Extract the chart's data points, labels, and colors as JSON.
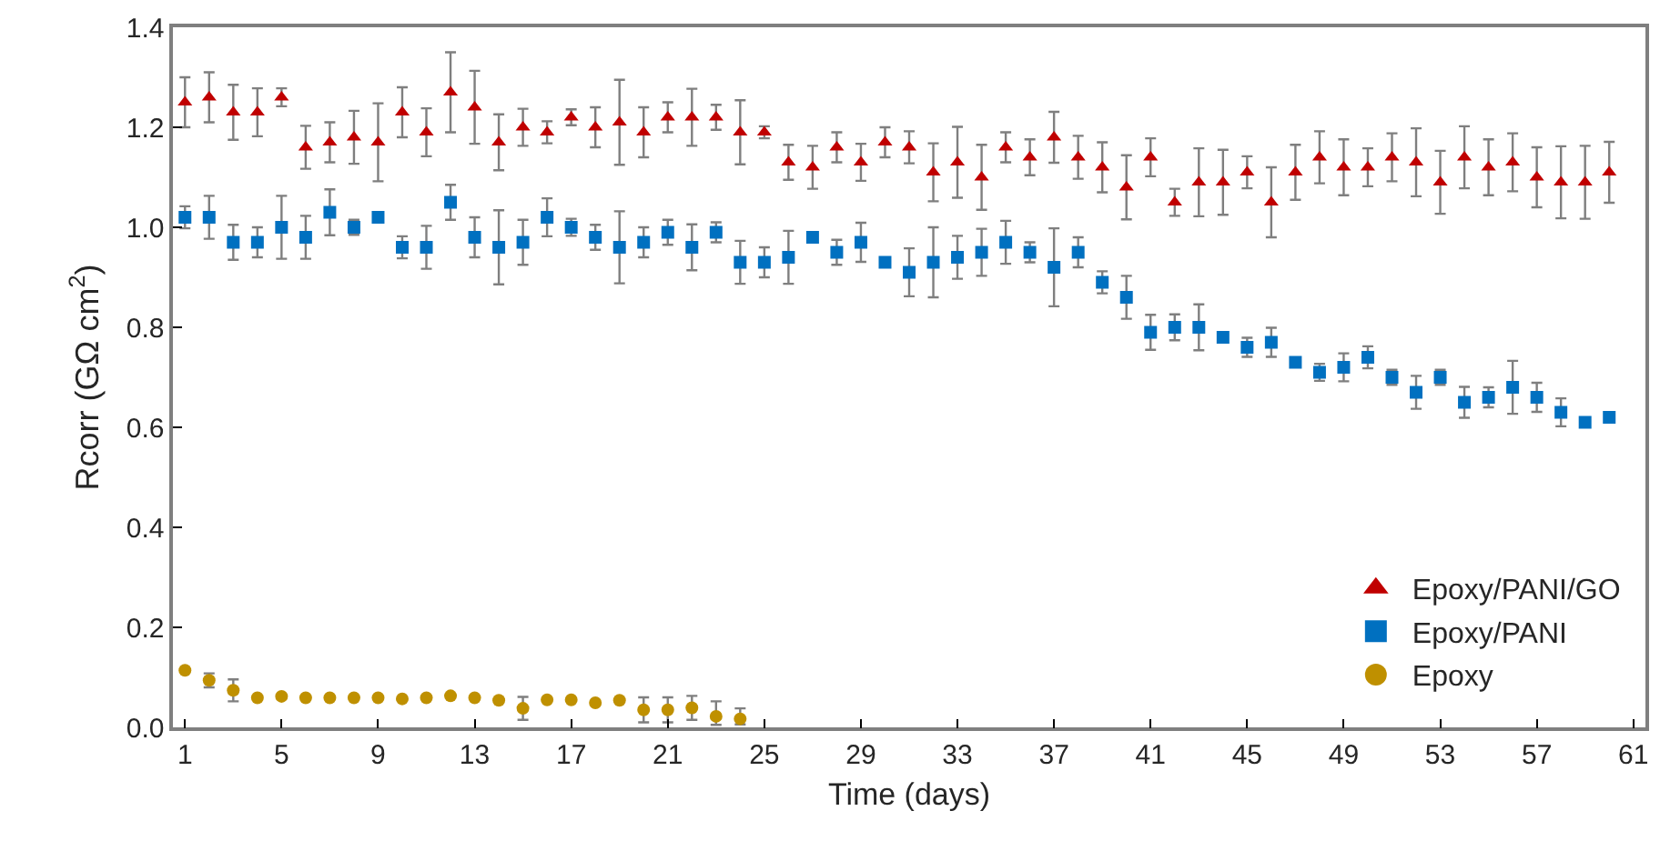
{
  "chart_data": {
    "type": "scatter",
    "xlabel": "Time (days)",
    "ylabel": "Rcorr (GΩ cm$^{2}$)",
    "x": [
      1,
      2,
      3,
      4,
      5,
      6,
      7,
      8,
      9,
      10,
      11,
      12,
      13,
      14,
      15,
      16,
      17,
      18,
      19,
      20,
      21,
      22,
      23,
      24,
      25,
      26,
      27,
      28,
      29,
      30,
      31,
      32,
      33,
      34,
      35,
      36,
      37,
      38,
      39,
      40,
      41,
      42,
      43,
      44,
      45,
      46,
      47,
      48,
      49,
      50,
      51,
      52,
      53,
      54,
      55,
      56,
      57,
      58,
      59,
      60
    ],
    "xlim": [
      0.5,
      61.5
    ],
    "xticks": [
      1,
      5,
      9,
      13,
      17,
      21,
      25,
      29,
      33,
      37,
      41,
      45,
      49,
      53,
      57,
      61
    ],
    "ylim": [
      0,
      1.4
    ],
    "yticks": [
      {
        "value": 0,
        "label": "0.0"
      },
      0.2,
      0.4,
      0.6,
      0.8,
      {
        "value": 1,
        "label": "1.0"
      },
      1.2,
      1.4
    ],
    "grid": false,
    "legend": "bottom right",
    "series": [
      {
        "name": "Epoxy/PANI/GO",
        "color": "#c00000",
        "marker": "triangle",
        "values": [
          1.25,
          1.26,
          1.23,
          1.23,
          1.26,
          1.16,
          1.17,
          1.18,
          1.17,
          1.23,
          1.19,
          1.27,
          1.24,
          1.17,
          1.2,
          1.19,
          1.22,
          1.2,
          1.21,
          1.19,
          1.22,
          1.22,
          1.22,
          1.19,
          1.19,
          1.13,
          1.12,
          1.16,
          1.13,
          1.17,
          1.16,
          1.11,
          1.13,
          1.1,
          1.16,
          1.14,
          1.18,
          1.14,
          1.12,
          1.08,
          1.14,
          1.05,
          1.09,
          1.09,
          1.11,
          1.05,
          1.11,
          1.14,
          1.12,
          1.12,
          1.14,
          1.13,
          1.09,
          1.14,
          1.12,
          1.13,
          1.1,
          1.09,
          1.09,
          1.11
        ],
        "errors": [
          0.05,
          0.05,
          0.055,
          0.048,
          0.018,
          0.043,
          0.04,
          0.053,
          0.078,
          0.05,
          0.048,
          0.08,
          0.073,
          0.056,
          0.037,
          0.022,
          0.016,
          0.04,
          0.085,
          0.05,
          0.03,
          0.057,
          0.025,
          0.064,
          0.012,
          0.035,
          0.043,
          0.03,
          0.037,
          0.03,
          0.032,
          0.058,
          0.071,
          0.065,
          0.03,
          0.036,
          0.051,
          0.043,
          0.05,
          0.064,
          0.038,
          0.027,
          0.068,
          0.065,
          0.032,
          0.07,
          0.055,
          0.052,
          0.056,
          0.038,
          0.048,
          0.068,
          0.063,
          0.062,
          0.056,
          0.058,
          0.06,
          0.072,
          0.073,
          0.061
        ]
      },
      {
        "name": "Epoxy/PANI",
        "color": "#0070c0",
        "marker": "square",
        "values": [
          1.02,
          1.02,
          0.97,
          0.97,
          1.0,
          0.98,
          1.03,
          1.0,
          1.02,
          0.96,
          0.96,
          1.05,
          0.98,
          0.96,
          0.97,
          1.02,
          1.0,
          0.98,
          0.96,
          0.97,
          0.99,
          0.96,
          0.99,
          0.93,
          0.93,
          0.94,
          0.98,
          0.95,
          0.97,
          0.93,
          0.91,
          0.93,
          0.94,
          0.95,
          0.97,
          0.95,
          0.92,
          0.95,
          0.89,
          0.86,
          0.79,
          0.8,
          0.8,
          0.78,
          0.76,
          0.77,
          0.73,
          0.71,
          0.72,
          0.74,
          0.7,
          0.67,
          0.7,
          0.65,
          0.66,
          0.68,
          0.66,
          0.63,
          0.61,
          0.62
        ],
        "errors": [
          0.022,
          0.043,
          0.035,
          0.03,
          0.063,
          0.043,
          0.046,
          0.015,
          null,
          0.022,
          0.043,
          0.035,
          0.04,
          0.074,
          0.045,
          0.038,
          0.017,
          0.025,
          0.072,
          0.03,
          0.025,
          0.046,
          0.02,
          0.043,
          0.03,
          0.053,
          null,
          0.025,
          0.039,
          null,
          0.048,
          0.07,
          0.043,
          0.047,
          0.043,
          0.02,
          0.078,
          0.03,
          0.022,
          0.043,
          0.035,
          0.026,
          0.046,
          null,
          0.019,
          0.029,
          null,
          0.017,
          0.028,
          0.022,
          0.015,
          0.033,
          0.015,
          0.031,
          0.02,
          0.053,
          0.029,
          0.028,
          null,
          null
        ]
      },
      {
        "name": "Epoxy",
        "color": "#bf9000",
        "marker": "circle",
        "x": [
          1,
          2,
          3,
          4,
          5,
          6,
          7,
          8,
          9,
          10,
          11,
          12,
          13,
          14,
          15,
          16,
          17,
          18,
          19,
          20,
          21,
          22,
          23,
          24
        ],
        "values": [
          0.114,
          0.094,
          0.074,
          0.059,
          0.062,
          0.059,
          0.059,
          0.059,
          0.059,
          0.057,
          0.059,
          0.063,
          0.059,
          0.054,
          0.038,
          0.055,
          0.055,
          0.049,
          0.054,
          0.035,
          0.035,
          0.039,
          0.022,
          0.017
        ],
        "errors": [
          null,
          0.014,
          0.022,
          null,
          null,
          null,
          null,
          null,
          null,
          null,
          null,
          null,
          null,
          null,
          0.023,
          null,
          null,
          null,
          null,
          0.025,
          0.025,
          [
            0.015,
            0.063
          ],
          [
            0.005,
            0.052
          ],
          [
            0.006,
            0.038
          ]
        ]
      }
    ]
  }
}
